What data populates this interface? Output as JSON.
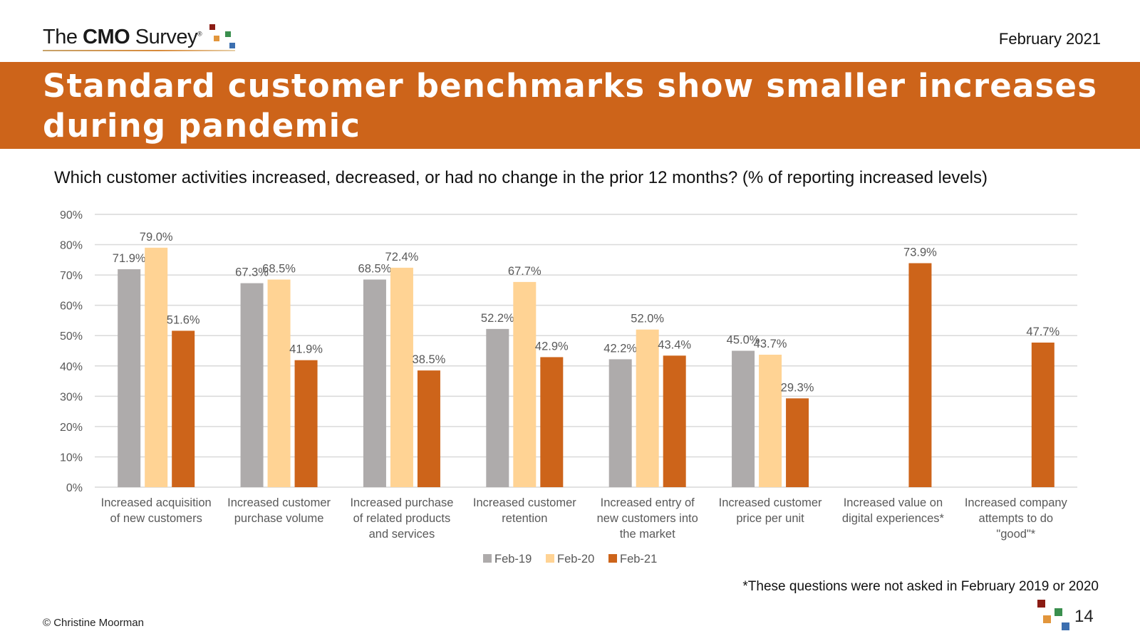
{
  "header": {
    "logo_text_pre": "The ",
    "logo_text_bold": "CMO",
    "logo_text_post": " Survey",
    "logo_reg": "®",
    "date": "February 2021"
  },
  "banner": {
    "title": "Standard customer benchmarks show smaller increases during pandemic",
    "color": "#cd641a"
  },
  "question": "Which customer activities increased, decreased, or had no change in the prior 12 months? (% of reporting increased levels)",
  "chart_data": {
    "type": "bar",
    "categories": [
      [
        "Increased acquisition",
        "of new customers"
      ],
      [
        "Increased customer",
        "purchase volume"
      ],
      [
        "Increased purchase",
        "of related products",
        "and services"
      ],
      [
        "Increased customer",
        "retention"
      ],
      [
        "Increased entry of",
        "new customers into",
        "the market"
      ],
      [
        "Increased customer",
        "price per unit"
      ],
      [
        "Increased value on",
        "digital experiences*"
      ],
      [
        "Increased company",
        "attempts to do",
        "\"good\"*"
      ]
    ],
    "series": [
      {
        "name": "Feb-19",
        "color": "#aeabab",
        "values": [
          71.9,
          67.3,
          68.5,
          52.2,
          42.2,
          45.0,
          null,
          null
        ]
      },
      {
        "name": "Feb-20",
        "color": "#ffd394",
        "values": [
          79.0,
          68.5,
          72.4,
          67.7,
          52.0,
          43.7,
          null,
          null
        ]
      },
      {
        "name": "Feb-21",
        "color": "#cd641a",
        "values": [
          51.6,
          41.9,
          38.5,
          42.9,
          43.4,
          29.3,
          73.9,
          47.7
        ]
      }
    ],
    "ylim": [
      0,
      90
    ],
    "yticks": [
      0,
      10,
      20,
      30,
      40,
      50,
      60,
      70,
      80,
      90
    ],
    "ytick_labels": [
      "0%",
      "10%",
      "20%",
      "30%",
      "40%",
      "50%",
      "60%",
      "70%",
      "80%",
      "90%"
    ],
    "value_suffix": "%",
    "grid": true,
    "legend": "bottom"
  },
  "footnote": "*These questions were not asked in February 2019 or 2020",
  "copyright": "© Christine Moorman",
  "page_number": "14",
  "logo_colors": [
    "#8b1c14",
    "#e2963c",
    "#3a8f4e",
    "#3c6fb0"
  ]
}
